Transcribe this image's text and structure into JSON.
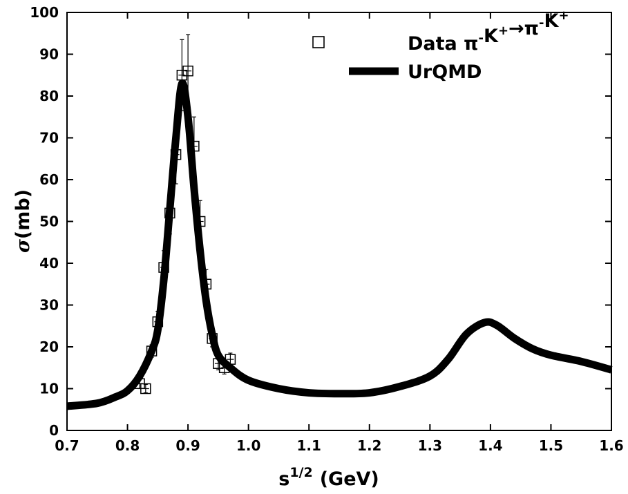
{
  "chart_data": {
    "type": "line",
    "xlabel_base": "s",
    "xlabel_sup": "1/2",
    "xlabel_unit": "(GeV)",
    "ylabel_symbol": "σ",
    "ylabel_unit": "(mb)",
    "xlim": [
      0.7,
      1.6
    ],
    "ylim": [
      0,
      100
    ],
    "x_ticks": [
      "0.7",
      "0.8",
      "0.9",
      "1.0",
      "1.1",
      "1.2",
      "1.3",
      "1.4",
      "1.5",
      "1.6"
    ],
    "y_ticks": [
      "0",
      "10",
      "20",
      "30",
      "40",
      "50",
      "60",
      "70",
      "80",
      "90",
      "100"
    ],
    "grid": false,
    "legend_position": "top-right",
    "series": [
      {
        "name": "Data π⁻K⁺→π⁻K⁺",
        "legend_main": "Data ",
        "legend_reaction": [
          {
            "t": "π",
            "sup": "-"
          },
          {
            "t": "K",
            "sup": "+"
          },
          {
            "t": "→π",
            "sup": "-"
          },
          {
            "t": "K",
            "sup": "+"
          }
        ],
        "kind": "scatter",
        "marker": "open-square",
        "points": [
          {
            "x": 0.82,
            "y": 11.2,
            "err": 1.2
          },
          {
            "x": 0.83,
            "y": 10.0,
            "err": 1.0
          },
          {
            "x": 0.84,
            "y": 19.0,
            "err": 1.5
          },
          {
            "x": 0.85,
            "y": 26.0,
            "err": 2.5
          },
          {
            "x": 0.86,
            "y": 39.0,
            "err": 4.0
          },
          {
            "x": 0.87,
            "y": 52.0,
            "err": 5.0
          },
          {
            "x": 0.88,
            "y": 66.0,
            "err": 7.0
          },
          {
            "x": 0.89,
            "y": 85.0,
            "err": 8.5
          },
          {
            "x": 0.9,
            "y": 86.0,
            "err": 8.7
          },
          {
            "x": 0.91,
            "y": 68.0,
            "err": 7.0
          },
          {
            "x": 0.92,
            "y": 50.0,
            "err": 5.0
          },
          {
            "x": 0.93,
            "y": 35.0,
            "err": 3.5
          },
          {
            "x": 0.94,
            "y": 22.0,
            "err": 2.0
          },
          {
            "x": 0.95,
            "y": 16.0,
            "err": 1.5
          },
          {
            "x": 0.96,
            "y": 15.0,
            "err": 1.5
          },
          {
            "x": 0.97,
            "y": 17.0,
            "err": 1.5
          }
        ]
      },
      {
        "name": "UrQMD",
        "kind": "line",
        "color": "#000000",
        "x": [
          0.7,
          0.75,
          0.78,
          0.8,
          0.82,
          0.84,
          0.85,
          0.86,
          0.87,
          0.88,
          0.89,
          0.9,
          0.91,
          0.92,
          0.93,
          0.94,
          0.95,
          0.97,
          1.0,
          1.05,
          1.1,
          1.15,
          1.2,
          1.25,
          1.3,
          1.33,
          1.36,
          1.39,
          1.41,
          1.44,
          1.47,
          1.5,
          1.55,
          1.6
        ],
        "y": [
          5.8,
          6.5,
          8.0,
          9.5,
          13.0,
          19.0,
          24.0,
          36.0,
          53.0,
          70.0,
          83.0,
          75.0,
          58.0,
          43.0,
          31.0,
          23.0,
          18.0,
          15.0,
          12.0,
          10.0,
          9.0,
          8.8,
          9.0,
          10.5,
          13.0,
          17.0,
          23.0,
          25.8,
          25.2,
          22.0,
          19.5,
          18.0,
          16.5,
          14.5
        ]
      }
    ]
  }
}
